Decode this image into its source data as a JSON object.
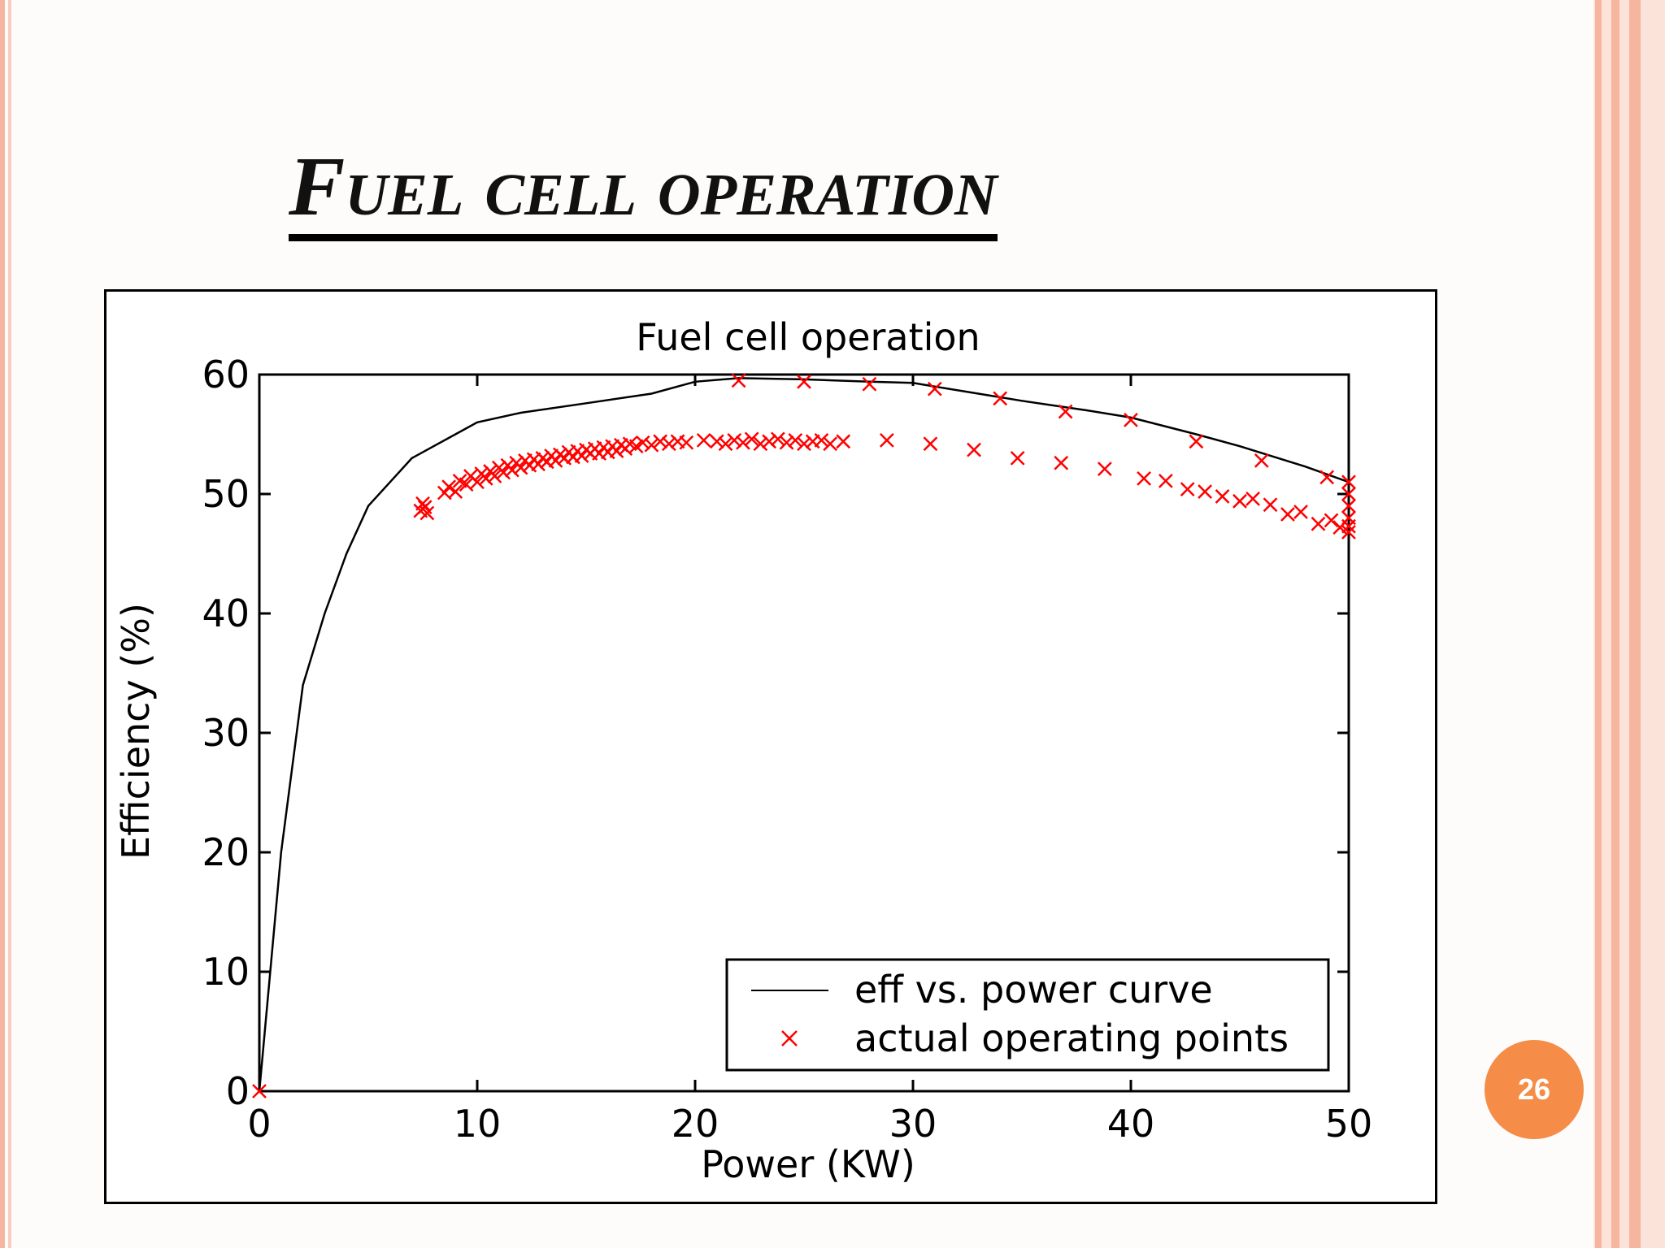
{
  "slide": {
    "title": "Fuel cell operation",
    "page_number": "26"
  },
  "colors": {
    "curve": "#000000",
    "points": "#ff0000",
    "badge": "#f58c48",
    "accent_stripe": "#f6b59f"
  },
  "chart_data": {
    "type": "scatter",
    "title": "Fuel cell operation",
    "xlabel": "Power (KW)",
    "ylabel": "Efficiency (%)",
    "xlim": [
      0,
      50
    ],
    "ylim": [
      0,
      60
    ],
    "xticks": [
      0,
      10,
      20,
      30,
      40,
      50
    ],
    "yticks": [
      0,
      10,
      20,
      30,
      40,
      50,
      60
    ],
    "grid": false,
    "legend_position": "bottom-right",
    "series": [
      {
        "name": "eff vs. power curve",
        "type": "line",
        "color": "#000000",
        "x": [
          0,
          0.5,
          1,
          1.5,
          2,
          3,
          4,
          5,
          6,
          7,
          8,
          9,
          10,
          12,
          15,
          18,
          20,
          22,
          25,
          28,
          30,
          33,
          35,
          38,
          40,
          43,
          45,
          48,
          50
        ],
        "y": [
          0,
          10,
          20,
          27,
          34,
          40,
          45,
          49,
          51,
          53,
          54,
          55,
          56,
          56.8,
          57.6,
          58.4,
          59.4,
          59.7,
          59.6,
          59.4,
          59.3,
          58.4,
          57.8,
          57,
          56.4,
          55,
          54,
          52.3,
          51
        ]
      },
      {
        "name": "actual operating points",
        "type": "scatter",
        "marker": "x",
        "color": "#ff0000",
        "x": [
          0,
          7.4,
          7.5,
          7.6,
          7.7,
          8.5,
          8.7,
          9,
          9.2,
          9.5,
          9.7,
          10,
          10.2,
          10.4,
          10.6,
          10.8,
          11,
          11.2,
          11.4,
          11.6,
          11.8,
          12,
          12.2,
          12.4,
          12.6,
          12.8,
          13,
          13.2,
          13.4,
          13.6,
          13.8,
          14,
          14.2,
          14.4,
          14.6,
          14.8,
          15,
          15.2,
          15.4,
          15.6,
          15.8,
          16,
          16.2,
          16.4,
          16.6,
          16.8,
          17,
          17.3,
          17.6,
          18,
          18.4,
          18.8,
          19.2,
          19.6,
          20.4,
          21,
          21.4,
          21.8,
          22.2,
          22.6,
          23,
          23.4,
          23.8,
          24.2,
          24.6,
          25,
          25.4,
          25.8,
          26.2,
          26.8,
          22,
          25,
          28,
          31,
          34,
          37,
          40,
          43,
          46,
          49,
          28.8,
          30.8,
          32.8,
          34.8,
          36.8,
          38.8,
          40.6,
          41.6,
          42.6,
          43.4,
          44.2,
          45,
          45.6,
          46.4,
          47.2,
          47.8,
          48.6,
          49.2,
          49.6,
          50,
          50,
          50,
          50,
          50,
          50
        ],
        "y": [
          0,
          48.6,
          49.2,
          48.9,
          48.4,
          50.1,
          50.6,
          50.2,
          51.1,
          50.8,
          51.5,
          51,
          51.7,
          51.3,
          51.9,
          51.5,
          52.2,
          51.8,
          52.4,
          52,
          52.6,
          52.2,
          52.8,
          52.4,
          52.9,
          52.5,
          53,
          52.7,
          53.2,
          52.8,
          53.3,
          53,
          53.5,
          53.1,
          53.6,
          53.2,
          53.7,
          53.4,
          53.8,
          53.4,
          53.9,
          53.5,
          54,
          53.6,
          54.1,
          53.8,
          54.2,
          54,
          54.3,
          54.1,
          54.4,
          54.2,
          54.4,
          54.3,
          54.5,
          54.4,
          54.2,
          54.5,
          54.3,
          54.6,
          54.2,
          54.4,
          54.6,
          54.3,
          54.5,
          54.2,
          54.4,
          54.5,
          54.2,
          54.4,
          59.5,
          59.4,
          59.2,
          58.8,
          58,
          56.9,
          56.2,
          54.4,
          52.8,
          51.4,
          54.5,
          54.2,
          53.7,
          53,
          52.6,
          52.1,
          51.3,
          51.1,
          50.4,
          50.2,
          49.8,
          49.4,
          49.6,
          49.1,
          48.3,
          48.5,
          47.5,
          47.8,
          47.2,
          51,
          50,
          49,
          48,
          47.3,
          46.8
        ]
      }
    ]
  }
}
